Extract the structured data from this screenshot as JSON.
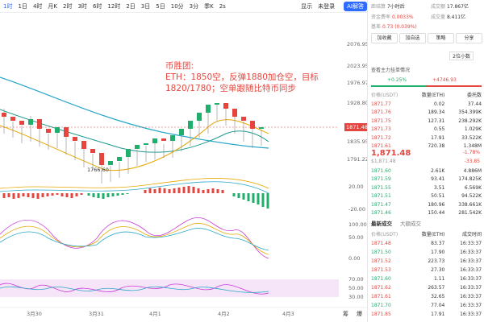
{
  "toolbar": {
    "intervals": [
      "1时",
      "1日",
      "4时",
      "月K",
      "2时",
      "3时",
      "6时",
      "12时",
      "2日",
      "3日",
      "5日",
      "10分",
      "3分",
      "季K",
      "2s"
    ],
    "display": "显示",
    "login": "未登录",
    "ai": "AI解答"
  },
  "chart": {
    "annotation": [
      "币胜团:",
      "ETH：1850空，反弹1880加仓空，目标",
      "1820/1780；空单跟随比特币同步"
    ],
    "price_axis": [
      "2076.95",
      "2023.95",
      "1976.97",
      "1928.80",
      "1835.95",
      "1791.22"
    ],
    "current_price": "1871.48",
    "low_label": "1766.60",
    "macd_axis": [
      "20.00",
      "-20.00"
    ],
    "kdj_axis": [
      "100.00",
      "50.00",
      "0.00"
    ],
    "rsi_axis": [
      "70.00",
      "50.00",
      "30.00"
    ],
    "time_axis": [
      "3月30",
      "3月31",
      "4月1",
      "4月2",
      "4月3"
    ],
    "footer": [
      "筹",
      "爆"
    ]
  },
  "market": {
    "stats": [
      [
        "距结算",
        "7小时后"
      ],
      [
        "成交额",
        "17.867亿"
      ],
      [
        "资金费率",
        "0.0033%"
      ],
      [
        "成交量",
        "8.411亿"
      ],
      [
        "基差",
        "0.73 (0.039%)"
      ]
    ],
    "buttons": [
      "加收藏",
      "加自选",
      "策略",
      "分享"
    ],
    "precision": "2位小数",
    "whale_link": "查看主力挂单情况",
    "bid_ratio": "+0.25%",
    "ask_diff": "+4746.93",
    "book_columns": [
      "价格(USDT)",
      "数量(ETH)",
      "委托数"
    ],
    "asks": [
      [
        "1871.77",
        "0.02",
        "37.44"
      ],
      [
        "1871.76",
        "189.34",
        "354.399K"
      ],
      [
        "1871.75",
        "127.31",
        "238.292K"
      ],
      [
        "1871.73",
        "0.55",
        "1.029K"
      ],
      [
        "1871.72",
        "17.91",
        "33.522K"
      ],
      [
        "1871.61",
        "720.38",
        "1.348M"
      ]
    ],
    "last_price": "1,871.48",
    "change_pct": "-1.78%",
    "usd_price": "$1,871.48",
    "change": "-33.85",
    "bids": [
      [
        "1871.60",
        "2.61K",
        "4.886M"
      ],
      [
        "1871.59",
        "93.41",
        "174.825K"
      ],
      [
        "1871.55",
        "3.51",
        "6.569K"
      ],
      [
        "1871.51",
        "50.51",
        "94.522K"
      ],
      [
        "1871.47",
        "180.96",
        "338.661K"
      ],
      [
        "1871.46",
        "150.44",
        "281.542K"
      ]
    ],
    "trade_tabs": [
      "最新成交",
      "大额成交"
    ],
    "trade_columns": [
      "价格(USDT)",
      "数量(ETH)",
      "成交时间"
    ],
    "trades": [
      [
        "1871.48",
        "83.37",
        "16:33:37"
      ],
      [
        "1871.50",
        "17.90",
        "16:33:37"
      ],
      [
        "1871.52",
        "223.73",
        "16:33:37"
      ],
      [
        "1871.53",
        "27.30",
        "16:33:37"
      ],
      [
        "1871.60",
        "1.11",
        "16:33:37"
      ],
      [
        "1871.62",
        "263.57",
        "16:33:37"
      ],
      [
        "1871.61",
        "32.65",
        "16:33:37"
      ],
      [
        "1871.70",
        "77.04",
        "16:33:37"
      ],
      [
        "1871.85",
        "17.91",
        "16:33:37"
      ]
    ]
  }
}
